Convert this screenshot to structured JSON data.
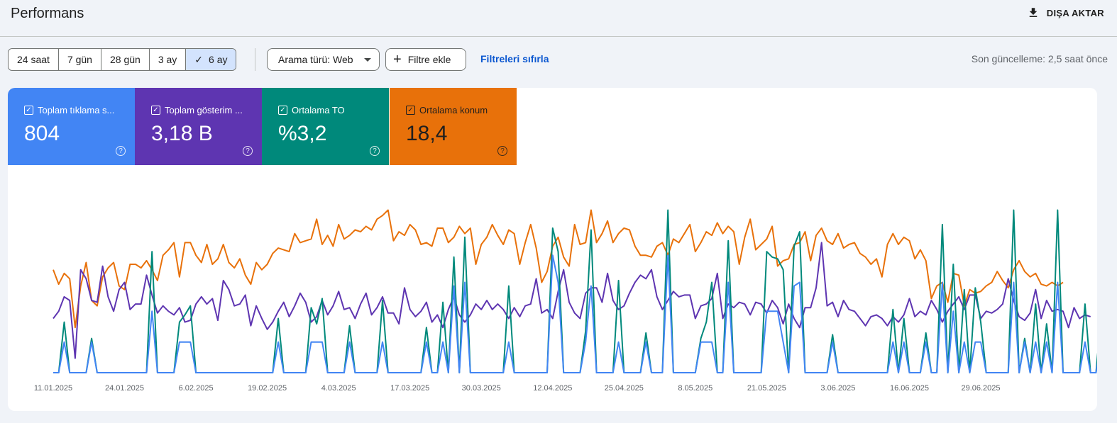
{
  "header": {
    "title": "Performans",
    "export_label": "DIŞA AKTAR",
    "export_icon": "download-icon"
  },
  "toolbar": {
    "date_ranges": [
      {
        "label": "24 saat",
        "selected": false
      },
      {
        "label": "7 gün",
        "selected": false
      },
      {
        "label": "28 gün",
        "selected": false
      },
      {
        "label": "3 ay",
        "selected": false
      },
      {
        "label": "6 ay",
        "selected": true
      }
    ],
    "search_type_label": "Arama türü: Web",
    "add_filter_label": "Filtre ekle",
    "reset_filters_label": "Filtreleri sıfırla",
    "last_update": "Son güncelleme: 2,5 saat önce"
  },
  "metrics": [
    {
      "label": "Toplam tıklama s...",
      "value": "804",
      "color": "#4285f4",
      "checked": true
    },
    {
      "label": "Toplam gösterim ...",
      "value": "3,18 B",
      "color": "#5e35b1",
      "checked": true
    },
    {
      "label": "Ortalama TO",
      "value": "%3,2",
      "color": "#00897b",
      "checked": true
    },
    {
      "label": "Ortalama konum",
      "value": "18,4",
      "color": "#e8710a",
      "checked": true
    }
  ],
  "chart_data": {
    "type": "line",
    "x_tick_labels": [
      "11.01.2025",
      "24.01.2025",
      "6.02.2025",
      "19.02.2025",
      "4.03.2025",
      "17.03.2025",
      "30.03.2025",
      "12.04.2025",
      "25.04.2025",
      "8.05.2025",
      "21.05.2025",
      "3.06.2025",
      "16.06.2025",
      "29.06.2025"
    ],
    "x_start": "2025-01-11",
    "grid": false,
    "legend": "metric cards above chart",
    "series": [
      {
        "name": "Ortalama konum",
        "color": "#e8710a",
        "normalized": true,
        "values": [
          0.57,
          0.49,
          0.55,
          0.52,
          0.25,
          0.48,
          0.61,
          0.4,
          0.37,
          0.53,
          0.58,
          0.61,
          0.48,
          0.46,
          0.6,
          0.6,
          0.58,
          0.62,
          0.57,
          0.51,
          0.65,
          0.68,
          0.72,
          0.53,
          0.72,
          0.72,
          0.65,
          0.61,
          0.71,
          0.6,
          0.63,
          0.71,
          0.61,
          0.58,
          0.63,
          0.54,
          0.49,
          0.61,
          0.57,
          0.6,
          0.66,
          0.69,
          0.68,
          0.67,
          0.77,
          0.72,
          0.73,
          0.74,
          0.85,
          0.71,
          0.76,
          0.7,
          0.82,
          0.74,
          0.76,
          0.79,
          0.78,
          0.81,
          0.79,
          0.85,
          0.87,
          0.9,
          0.73,
          0.78,
          0.76,
          0.82,
          0.79,
          0.71,
          0.72,
          0.7,
          0.8,
          0.8,
          0.72,
          0.75,
          0.81,
          0.77,
          0.8,
          0.6,
          0.71,
          0.75,
          0.82,
          0.76,
          0.71,
          0.79,
          0.77,
          0.6,
          0.72,
          0.82,
          0.69,
          0.5,
          0.56,
          0.7,
          0.75,
          0.64,
          0.59,
          0.82,
          0.71,
          0.72,
          0.9,
          0.72,
          0.77,
          0.84,
          0.72,
          0.77,
          0.8,
          0.79,
          0.7,
          0.65,
          0.65,
          0.64,
          0.7,
          0.72,
          0.65,
          0.74,
          0.72,
          0.77,
          0.82,
          0.67,
          0.72,
          0.78,
          0.76,
          0.83,
          0.77,
          0.81,
          0.78,
          0.6,
          0.75,
          0.85,
          0.68,
          0.71,
          0.74,
          0.81,
          0.59,
          0.62,
          0.63,
          0.71,
          0.72,
          0.78,
          0.62,
          0.76,
          0.8,
          0.73,
          0.71,
          0.77,
          0.69,
          0.71,
          0.72,
          0.66,
          0.64,
          0.6,
          0.63,
          0.53,
          0.71,
          0.77,
          0.71,
          0.75,
          0.73,
          0.63,
          0.68,
          0.62,
          0.41,
          0.48,
          0.5,
          0.39,
          0.55,
          0.54,
          0.37,
          0.46,
          0.44,
          0.45,
          0.48,
          0.5,
          0.56,
          0.51,
          0.47,
          0.57,
          0.62,
          0.56,
          0.53,
          0.55,
          0.49,
          0.48,
          0.5,
          0.48,
          0.5
        ]
      },
      {
        "name": "Toplam gösterim sayısı",
        "color": "#5e35b1",
        "normalized": true,
        "values": [
          0.3,
          0.34,
          0.42,
          0.4,
          0.08,
          0.57,
          0.52,
          0.4,
          0.39,
          0.59,
          0.42,
          0.34,
          0.46,
          0.5,
          0.35,
          0.38,
          0.38,
          0.54,
          0.43,
          0.33,
          0.37,
          0.34,
          0.32,
          0.36,
          0.28,
          0.29,
          0.38,
          0.42,
          0.38,
          0.41,
          0.29,
          0.51,
          0.46,
          0.37,
          0.38,
          0.43,
          0.26,
          0.37,
          0.3,
          0.24,
          0.28,
          0.34,
          0.39,
          0.31,
          0.37,
          0.44,
          0.39,
          0.28,
          0.31,
          0.4,
          0.32,
          0.37,
          0.45,
          0.35,
          0.36,
          0.3,
          0.38,
          0.44,
          0.32,
          0.36,
          0.42,
          0.33,
          0.33,
          0.27,
          0.47,
          0.35,
          0.31,
          0.34,
          0.39,
          0.28,
          0.32,
          0.25,
          0.35,
          0.42,
          0.32,
          0.28,
          0.32,
          0.38,
          0.35,
          0.4,
          0.35,
          0.38,
          0.35,
          0.3,
          0.36,
          0.31,
          0.37,
          0.38,
          0.52,
          0.33,
          0.35,
          0.3,
          0.45,
          0.57,
          0.39,
          0.33,
          0.3,
          0.44,
          0.47,
          0.47,
          0.39,
          0.55,
          0.4,
          0.35,
          0.37,
          0.44,
          0.5,
          0.54,
          0.52,
          0.57,
          0.42,
          0.35,
          0.4,
          0.45,
          0.42,
          0.43,
          0.43,
          0.3,
          0.37,
          0.38,
          0.41,
          0.55,
          0.3,
          0.38,
          0.36,
          0.39,
          0.38,
          0.32,
          0.39,
          0.38,
          0.33,
          0.4,
          0.36,
          0.27,
          0.38,
          0.3,
          0.25,
          0.36,
          0.36,
          0.47,
          0.72,
          0.37,
          0.39,
          0.31,
          0.4,
          0.35,
          0.34,
          0.3,
          0.26,
          0.31,
          0.32,
          0.3,
          0.26,
          0.31,
          0.28,
          0.32,
          0.41,
          0.31,
          0.34,
          0.32,
          0.4,
          0.35,
          0.28,
          0.34,
          0.38,
          0.42,
          0.35,
          0.43,
          0.43,
          0.3,
          0.34,
          0.33,
          0.35,
          0.38,
          0.52,
          0.4,
          0.31,
          0.29,
          0.33,
          0.46,
          0.3,
          0.4,
          0.34,
          0.35,
          0.34,
          0.25,
          0.36,
          0.3,
          0.32,
          0.31
        ]
      },
      {
        "name": "Ortalama TO",
        "color": "#00897b",
        "normalized": true,
        "values": [
          0,
          0,
          0.28,
          0,
          0,
          0,
          0,
          0.19,
          0,
          0,
          0,
          0,
          0,
          0,
          0,
          0,
          0,
          0,
          0.67,
          0,
          0,
          0,
          0,
          0.28,
          0.32,
          0.37,
          0,
          0,
          0,
          0,
          0,
          0,
          0,
          0,
          0,
          0,
          0,
          0,
          0,
          0,
          0,
          0.3,
          0,
          0,
          0,
          0,
          0,
          0.36,
          0.27,
          0.41,
          0,
          0,
          0,
          0,
          0.26,
          0,
          0,
          0,
          0,
          0,
          0.4,
          0,
          0,
          0,
          0,
          0,
          0,
          0,
          0.25,
          0,
          0,
          0.39,
          0,
          0.64,
          0,
          0.75,
          0,
          0,
          0,
          0,
          0,
          0,
          0,
          0.48,
          0,
          0,
          0,
          0,
          0,
          0,
          0,
          0.8,
          0.67,
          0,
          0,
          0,
          0,
          0.23,
          0.79,
          0,
          0,
          0,
          0,
          0.51,
          0,
          0,
          0,
          0,
          0.22,
          0,
          0,
          0,
          0.9,
          0,
          0,
          0,
          0,
          0,
          0.19,
          0.28,
          0.5,
          0,
          0,
          0.73,
          0,
          0,
          0,
          0,
          0,
          0,
          0.67,
          0.64,
          0.63,
          0.57,
          0,
          0.7,
          0.78,
          0,
          0,
          0,
          0,
          0,
          0.21,
          0,
          0,
          0,
          0,
          0,
          0,
          0,
          0,
          0,
          0,
          0.35,
          0,
          0.3,
          0,
          0,
          0,
          0.22,
          0,
          0,
          0.82,
          0,
          0.6,
          0,
          0.46,
          0,
          0.47,
          0.28,
          0,
          0,
          0,
          0,
          0,
          0.9,
          0,
          0.19,
          0,
          0.38,
          0,
          0.27,
          0,
          0.9,
          0,
          0,
          0,
          0,
          0.38,
          0,
          0,
          0.33,
          0,
          0.31,
          0
        ]
      },
      {
        "name": "Toplam tıklama sayısı",
        "color": "#4285f4",
        "normalized": true,
        "values": [
          0,
          0,
          0.17,
          0,
          0,
          0,
          0,
          0.17,
          0,
          0,
          0,
          0,
          0,
          0,
          0,
          0,
          0,
          0,
          0.34,
          0,
          0,
          0,
          0,
          0.17,
          0.17,
          0.17,
          0,
          0,
          0,
          0,
          0,
          0,
          0,
          0,
          0,
          0,
          0,
          0,
          0,
          0,
          0,
          0.17,
          0,
          0,
          0,
          0,
          0,
          0.17,
          0.17,
          0.17,
          0,
          0,
          0,
          0,
          0.17,
          0,
          0,
          0,
          0,
          0,
          0.17,
          0,
          0,
          0,
          0,
          0,
          0,
          0,
          0.17,
          0,
          0,
          0.17,
          0,
          0.48,
          0,
          0.5,
          0,
          0,
          0,
          0,
          0,
          0,
          0,
          0.17,
          0,
          0,
          0,
          0,
          0,
          0,
          0,
          0.65,
          0.5,
          0,
          0,
          0,
          0,
          0.17,
          0.48,
          0,
          0,
          0,
          0,
          0.17,
          0,
          0,
          0,
          0,
          0.17,
          0,
          0,
          0,
          0.65,
          0,
          0,
          0,
          0,
          0,
          0.17,
          0.17,
          0.17,
          0,
          0,
          0.5,
          0,
          0,
          0,
          0,
          0,
          0,
          0.34,
          0.34,
          0.34,
          0.17,
          0,
          0.48,
          0.5,
          0,
          0,
          0,
          0,
          0,
          0.17,
          0,
          0,
          0,
          0,
          0,
          0,
          0,
          0,
          0,
          0,
          0.17,
          0,
          0.17,
          0,
          0,
          0,
          0.17,
          0,
          0,
          0.5,
          0,
          0.34,
          0,
          0.17,
          0,
          0.17,
          0.17,
          0,
          0,
          0,
          0,
          0,
          0.5,
          0,
          0.17,
          0,
          0.17,
          0,
          0.17,
          0,
          0.5,
          0,
          0,
          0,
          0,
          0.17,
          0,
          0,
          0.17,
          0,
          0.17,
          0
        ]
      }
    ]
  }
}
